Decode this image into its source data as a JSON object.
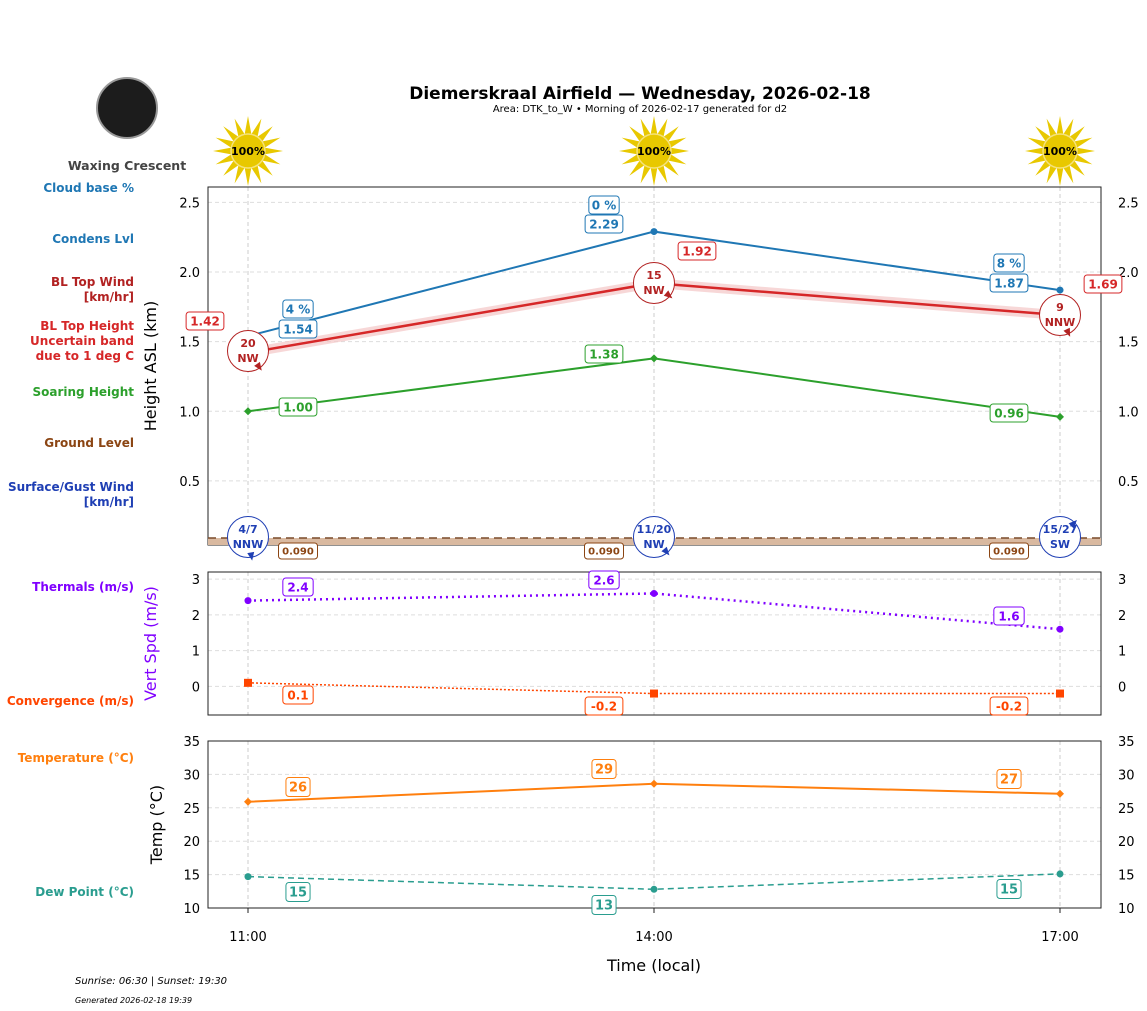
{
  "title": "Diemerskraal Airfield — Wednesday, 2026-02-18",
  "subtitle": "Area: DTK_to_W • Morning of 2026-02-17 generated for d2",
  "moon": {
    "phase": "Waxing Crescent"
  },
  "sun": [
    "100%",
    "100%",
    "100%"
  ],
  "footer": {
    "sun_times": "Sunrise: 06:30 | Sunset: 19:30",
    "generated": "Generated 2026-02-18 19:39"
  },
  "legend": {
    "cloud_base": "Cloud base %",
    "condens": "Condens Lvl",
    "bl_wind": [
      "BL Top Wind",
      "[km/hr]"
    ],
    "bl_top": [
      "BL Top Height",
      "Uncertain band",
      "due to 1 deg C"
    ],
    "soaring": "Soaring Height",
    "ground": "Ground Level",
    "surface_wind": [
      "Surface/Gust Wind",
      "[km/hr]"
    ],
    "thermals": "Thermals (m/s)",
    "convergence": "Convergence (m/s)",
    "temperature": "Temperature (°C)",
    "dewpoint": "Dew Point (°C)"
  },
  "colors": {
    "cloud": "#1f77b4",
    "bl": "#d62728",
    "blwind": "#b22222",
    "soar": "#2ca02c",
    "ground": "#8b4513",
    "surf": "#1f3fb4",
    "therm": "#8000ff",
    "conv": "#ff4500",
    "temp": "#ff7f0e",
    "dew": "#2a9d8f"
  },
  "chart_data": [
    {
      "type": "line",
      "ylabel": "Height ASL (km)",
      "ylim": [
        0.04,
        2.61
      ],
      "yticks": [
        "0.5",
        "1.0",
        "1.5",
        "2.0",
        "2.5"
      ],
      "x": [
        "11:00",
        "14:00",
        "17:00"
      ],
      "series": [
        {
          "name": "Condens Lvl",
          "values": [
            1.54,
            2.29,
            1.87
          ],
          "labels": [
            "1.54",
            "2.29",
            "1.87"
          ],
          "cloud_pct": [
            "4 %",
            "0 %",
            "8 %"
          ]
        },
        {
          "name": "BL Top Height",
          "values": [
            1.42,
            1.92,
            1.69
          ],
          "labels": [
            "1.42",
            "1.92",
            "1.69"
          ],
          "band": 0.035
        },
        {
          "name": "Soaring Height",
          "values": [
            1.0,
            1.38,
            0.96
          ],
          "labels": [
            "1.00",
            "1.38",
            "0.96"
          ]
        },
        {
          "name": "Ground Level",
          "values": [
            0.09,
            0.09,
            0.09
          ],
          "labels": [
            "0.090",
            "0.090",
            "0.090"
          ]
        }
      ],
      "bl_wind": [
        {
          "speed": "20",
          "dir": "NW"
        },
        {
          "speed": "15",
          "dir": "NW"
        },
        {
          "speed": "9",
          "dir": "NNW"
        }
      ],
      "surface_wind": [
        {
          "speed": "4/7",
          "dir": "NNW"
        },
        {
          "speed": "11/20",
          "dir": "NW"
        },
        {
          "speed": "15/27",
          "dir": "SW"
        }
      ]
    },
    {
      "type": "line",
      "ylabel": "Vert Spd (m/s)",
      "ylim": [
        -0.8,
        3.2
      ],
      "yticks": [
        "0",
        "1",
        "2",
        "3"
      ],
      "series": [
        {
          "name": "Thermals (m/s)",
          "values": [
            2.4,
            2.6,
            1.6
          ],
          "labels": [
            "2.4",
            "2.6",
            "1.6"
          ]
        },
        {
          "name": "Convergence (m/s)",
          "values": [
            0.1,
            -0.2,
            -0.2
          ],
          "labels": [
            "0.1",
            "-0.2",
            "-0.2"
          ]
        }
      ]
    },
    {
      "type": "line",
      "ylabel": "Temp (°C)",
      "xlabel": "Time (local)",
      "ylim": [
        10,
        35
      ],
      "yticks": [
        "10",
        "15",
        "20",
        "25",
        "30",
        "35"
      ],
      "x": [
        "11:00",
        "14:00",
        "17:00"
      ],
      "series": [
        {
          "name": "Temperature (°C)",
          "values": [
            25.9,
            28.6,
            27.1
          ],
          "labels": [
            "26",
            "29",
            "27"
          ]
        },
        {
          "name": "Dew Point (°C)",
          "values": [
            14.7,
            12.8,
            15.1
          ],
          "labels": [
            "15",
            "13",
            "15"
          ]
        }
      ]
    }
  ]
}
